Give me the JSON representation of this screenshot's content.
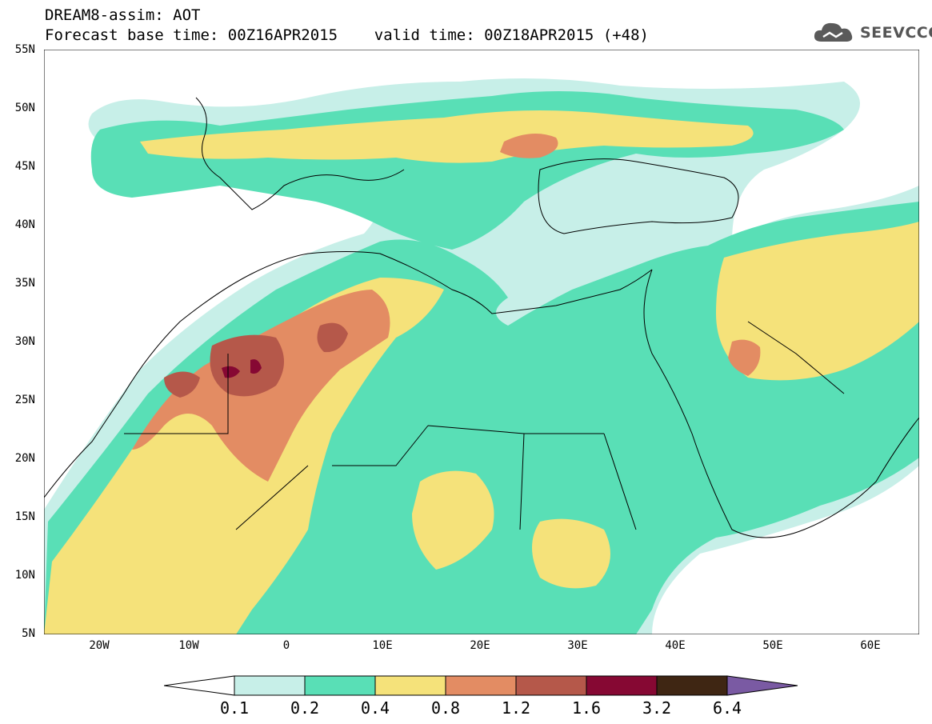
{
  "title": {
    "line1": "DREAM8-assim: AOT",
    "line2": "Forecast base time: 00Z16APR2015    valid time: 00Z18APR2015 (+48)"
  },
  "logo": {
    "text": "SEEVCCC",
    "icon": "cloud-icon"
  },
  "axes": {
    "lat_labels": [
      "55N",
      "50N",
      "45N",
      "40N",
      "35N",
      "30N",
      "25N",
      "20N",
      "15N",
      "10N",
      "5N"
    ],
    "lon_labels": [
      "20W",
      "10W",
      "0",
      "10E",
      "20E",
      "30E",
      "40E",
      "50E",
      "60E"
    ],
    "lat_range": [
      5,
      55
    ],
    "lon_range": [
      -25,
      65
    ]
  },
  "colorbar": {
    "labels": [
      "0.1",
      "0.2",
      "0.4",
      "0.8",
      "1.2",
      "1.6",
      "3.2",
      "6.4"
    ],
    "colors": [
      "#ffffff",
      "#c7efe8",
      "#59dfb6",
      "#f5e27a",
      "#e38c63",
      "#b5584a",
      "#860833",
      "#3f2613",
      "#7a5aa3"
    ]
  }
}
